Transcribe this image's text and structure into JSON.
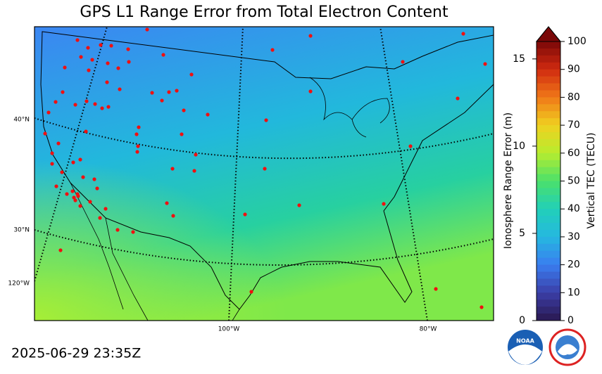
{
  "title": "GPS L1 Range Error from Total Electron Content",
  "timestamp": "2025-06-29 23:35Z",
  "map": {
    "lat_labels": [
      "40°N",
      "30°N"
    ],
    "lon_labels": [
      "120°W",
      "100°W",
      "80°W"
    ]
  },
  "chart_data": {
    "type": "colorbar",
    "label": "Vertical TEC (TECU)",
    "ylim": [
      0,
      100
    ],
    "yticks": [
      0,
      10,
      20,
      30,
      40,
      50,
      60,
      70,
      80,
      90,
      100
    ],
    "y2label": "Ionosphere Range Error (m)",
    "y2lim": [
      0,
      16
    ],
    "y2ticks": [
      0,
      5,
      10,
      15
    ],
    "colormap": [
      "#2a1850",
      "#3b3fa8",
      "#3a7ef0",
      "#25b8e0",
      "#22d0b8",
      "#4be06a",
      "#b8ec2e",
      "#f0d020",
      "#f07818",
      "#d02a10",
      "#7a0808"
    ],
    "extend": "max"
  }
}
